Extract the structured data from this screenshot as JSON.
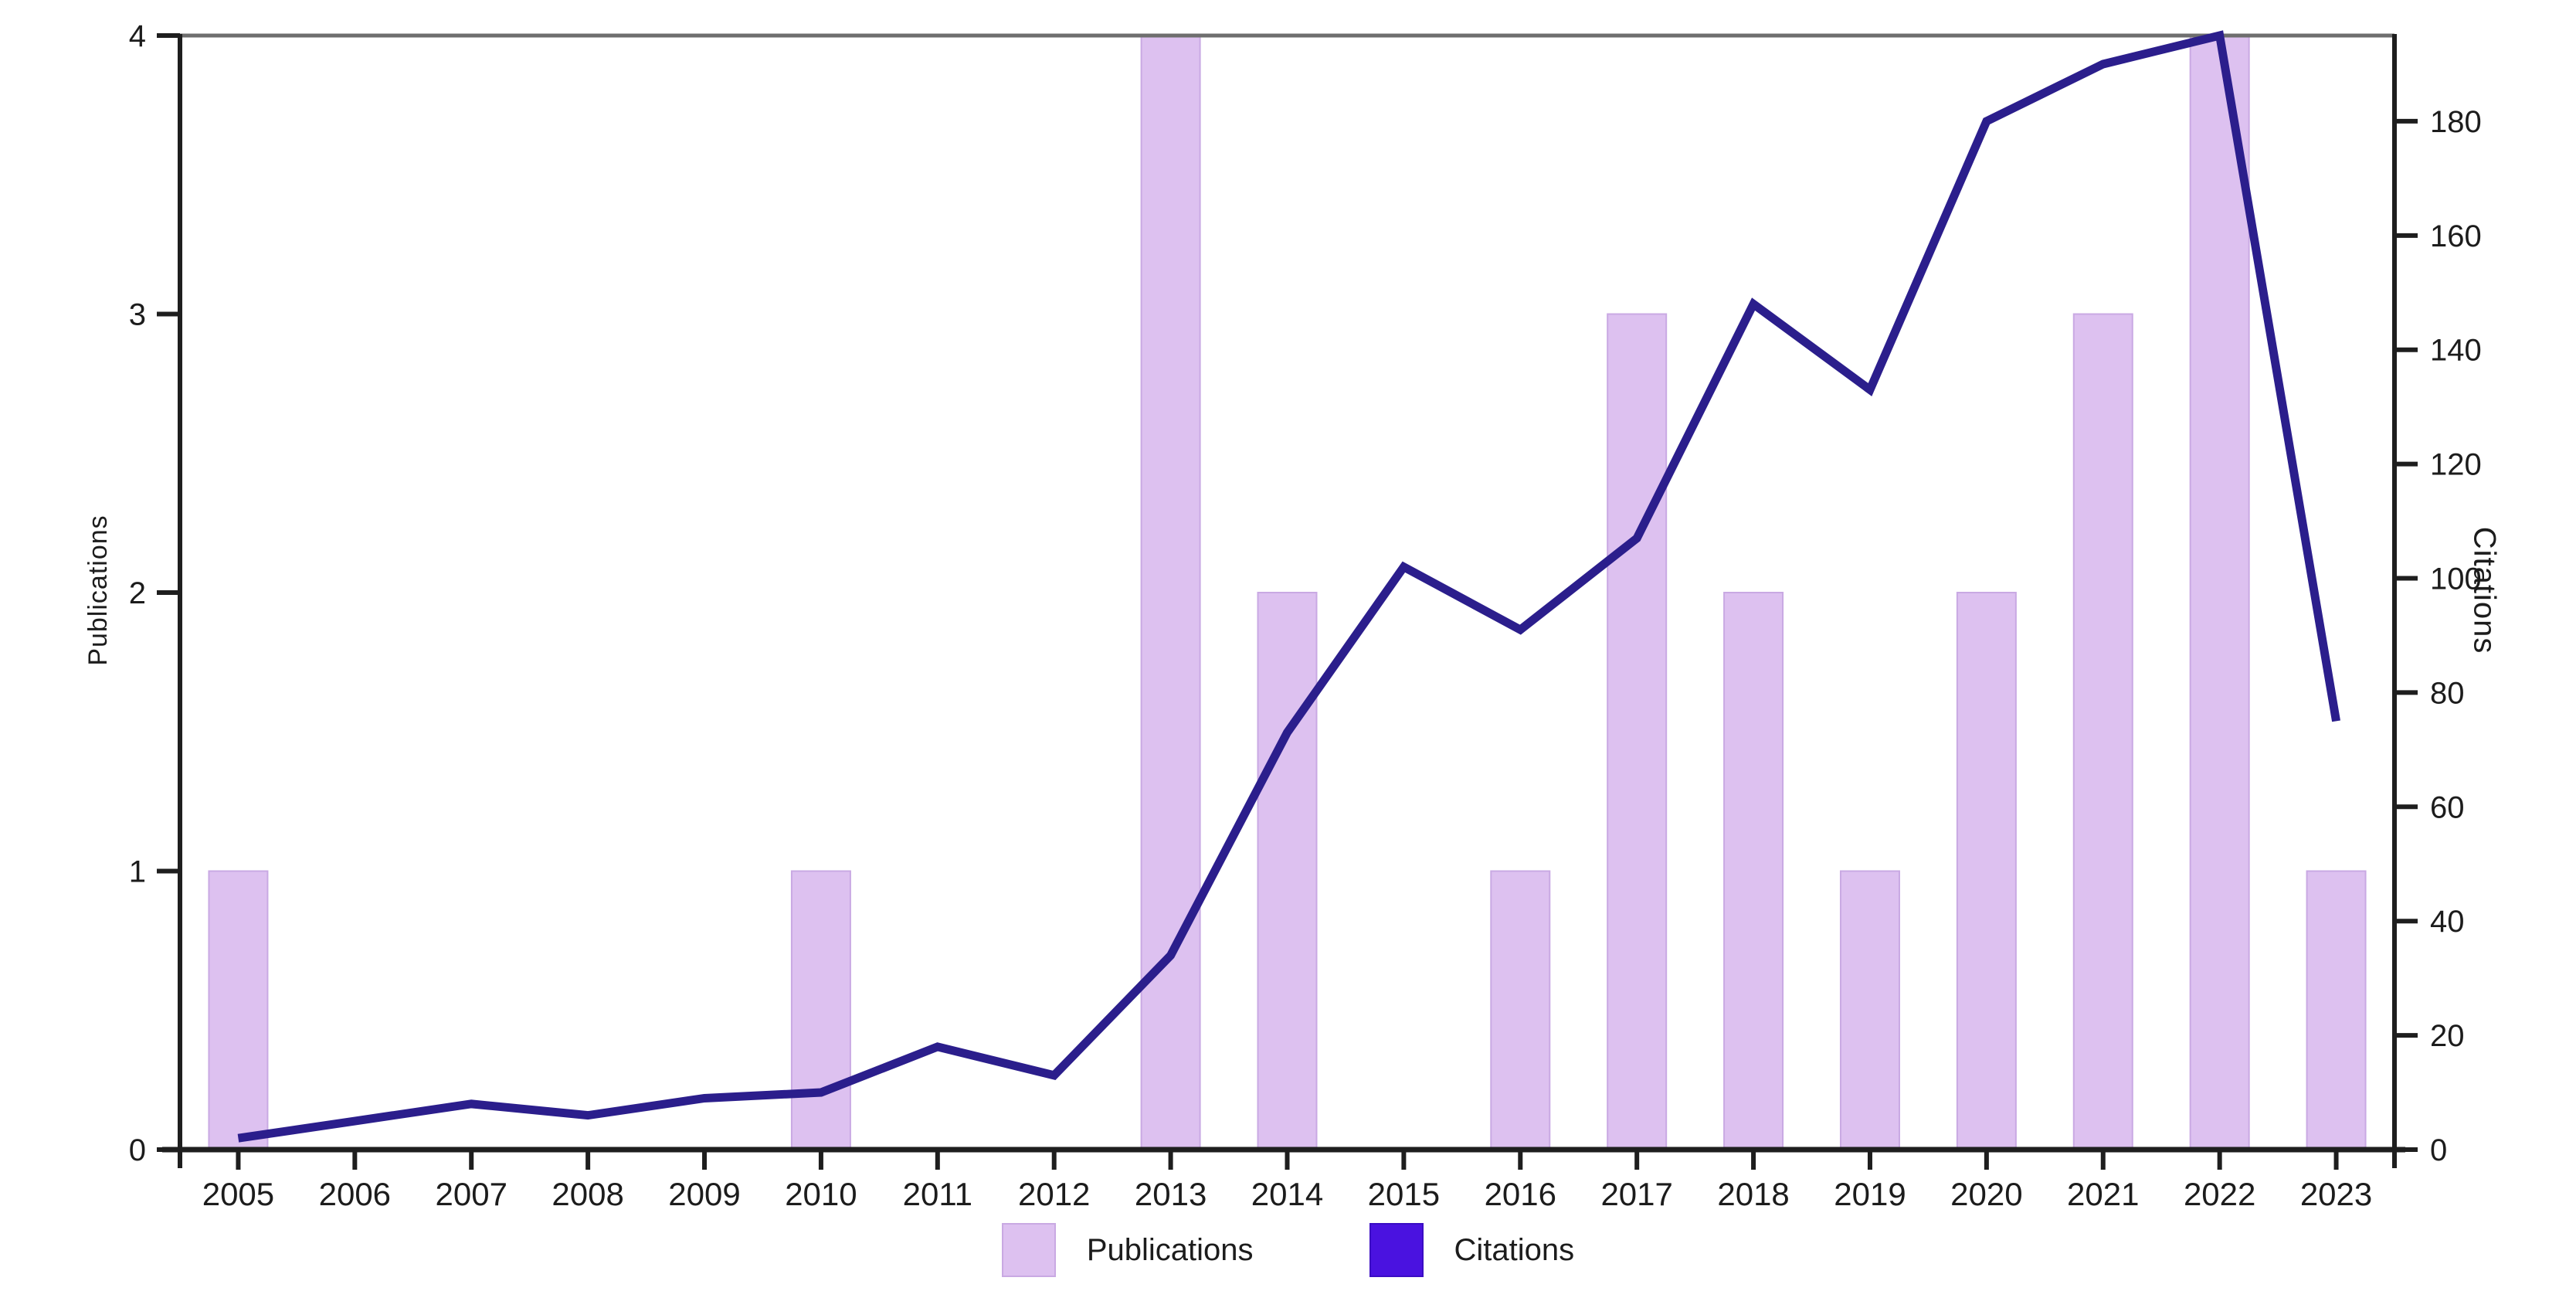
{
  "chart_data": {
    "type": "bar",
    "title": "",
    "categories": [
      "2005",
      "2006",
      "2007",
      "2008",
      "2009",
      "2010",
      "2011",
      "2012",
      "2013",
      "2014",
      "2015",
      "2016",
      "2017",
      "2018",
      "2019",
      "2020",
      "2021",
      "2022",
      "2023"
    ],
    "series": [
      {
        "name": "Publications",
        "type": "bar",
        "axis": "left",
        "color": "#ddc1f0",
        "border_color": "#c9a9e3",
        "values": [
          1,
          0,
          0,
          0,
          0,
          1,
          0,
          0,
          4,
          2,
          0,
          1,
          3,
          2,
          1,
          2,
          3,
          4,
          1
        ]
      },
      {
        "name": "Citations",
        "type": "line",
        "axis": "right",
        "color": "#2b1e8c",
        "values": [
          2,
          5,
          8,
          6,
          9,
          10,
          18,
          13,
          34,
          73,
          102,
          91,
          107,
          148,
          133,
          180,
          190,
          195,
          75
        ]
      }
    ],
    "left_axis": {
      "label": "Publications",
      "ticks": [
        0,
        1,
        2,
        3,
        4
      ],
      "range": [
        0,
        4
      ]
    },
    "right_axis": {
      "label": "Citations",
      "ticks": [
        0,
        20,
        40,
        60,
        80,
        100,
        120,
        140,
        160,
        180
      ],
      "range": [
        0,
        195
      ]
    },
    "legend": {
      "position": "bottom",
      "items": [
        {
          "label": "Publications",
          "color": "#ddc1f0",
          "border": "#c9a9e3"
        },
        {
          "label": "Citations",
          "color": "#4a12e0",
          "border": "#3b0dc4"
        }
      ]
    },
    "grid": false
  },
  "colors": {
    "axis": "#1e1e1e",
    "top_border": "#6e6e6e",
    "text": "#1c1c1c",
    "background": "#ffffff"
  }
}
